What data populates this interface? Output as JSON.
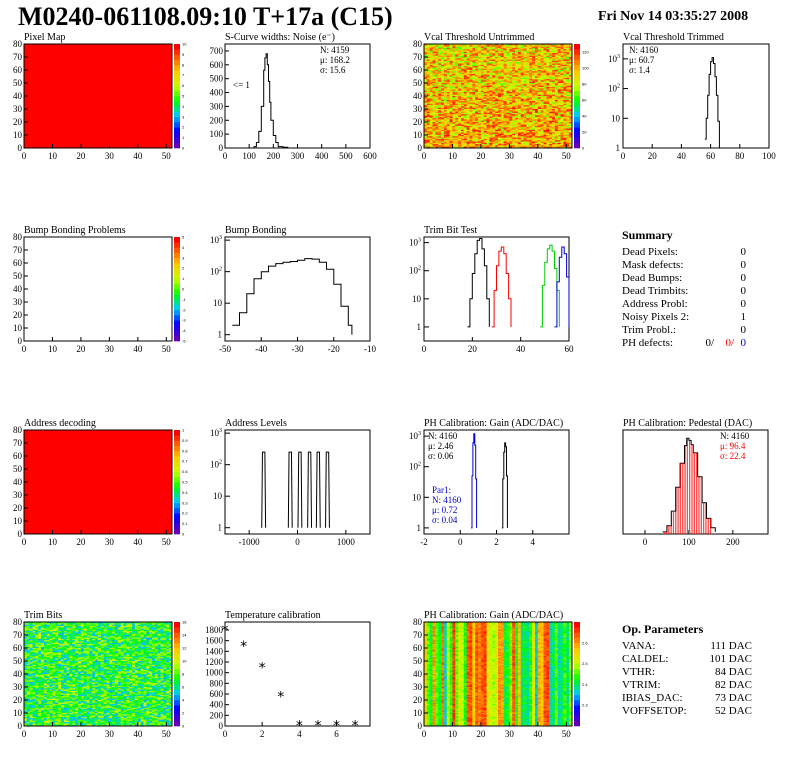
{
  "page": {
    "title": "M0240-061108.09:10 T+17a (C15)",
    "date": "Fri Nov 14 03:35:27 2008"
  },
  "colors": {
    "red": "#ff0000",
    "blue": "#0000cc",
    "green": "#00cc00",
    "black": "#000000"
  },
  "summary": {
    "title": "Summary",
    "rows": [
      {
        "label": "Dead Pixels:",
        "value": "0"
      },
      {
        "label": "Mask defects:",
        "value": "0"
      },
      {
        "label": "Dead Bumps:",
        "value": "0"
      },
      {
        "label": "Dead Trimbits:",
        "value": "0"
      },
      {
        "label": "Address Probl:",
        "value": "0"
      },
      {
        "label": "Noisy Pixels 2:",
        "value": "1"
      },
      {
        "label": "Trim Probl.:",
        "value": "0"
      }
    ],
    "ph_defects": {
      "label": "PH defects:",
      "v1": "0/",
      "v2": "0/",
      "v3": "0"
    }
  },
  "op_params": {
    "title": "Op. Parameters",
    "rows": [
      {
        "label": "VANA:",
        "value": "111 DAC"
      },
      {
        "label": "CALDEL:",
        "value": "101 DAC"
      },
      {
        "label": "VTHR:",
        "value": "84 DAC"
      },
      {
        "label": "VTRIM:",
        "value": "82 DAC"
      },
      {
        "label": "IBIAS_DAC:",
        "value": "73 DAC"
      },
      {
        "label": "VOFFSETOP:",
        "value": "52 DAC"
      }
    ]
  },
  "chart_data": [
    {
      "id": "pixel-map",
      "type": "heatmap",
      "title": "Pixel Map",
      "pattern": "uniform-red",
      "xlim": [
        0,
        52
      ],
      "ylim": [
        0,
        80
      ],
      "xticks": [
        0,
        10,
        20,
        30,
        40,
        50
      ],
      "yticks": [
        0,
        10,
        20,
        30,
        40,
        50,
        60,
        70,
        80
      ],
      "palette": {
        "min": 0,
        "max": 10,
        "ticks": [
          0,
          1,
          2,
          3,
          4,
          5,
          6,
          7,
          8,
          9,
          10
        ]
      }
    },
    {
      "id": "scurve-noise",
      "type": "line",
      "title": "S-Curve widths: Noise (e⁻)",
      "xlim": [
        0,
        600
      ],
      "ylim": [
        0,
        750
      ],
      "xticks": [
        0,
        100,
        200,
        300,
        400,
        500,
        600
      ],
      "yticks": [
        0,
        100,
        200,
        300,
        400,
        500,
        600,
        700
      ],
      "stats": [
        "N: 4159",
        "μ: 168.2",
        "σ: 15.6"
      ],
      "annotation": "<= 1",
      "series": [
        {
          "color": "#000",
          "x": [
            110,
            120,
            130,
            140,
            150,
            160,
            165,
            170,
            175,
            180,
            185,
            190,
            200,
            210,
            220,
            240,
            260
          ],
          "y": [
            0,
            10,
            40,
            120,
            300,
            560,
            650,
            680,
            600,
            480,
            330,
            200,
            90,
            40,
            10,
            5,
            0
          ]
        }
      ]
    },
    {
      "id": "vcal-untrimmed",
      "type": "heatmap",
      "title": "Vcal Threshold Untrimmed",
      "pattern": "noise-hot",
      "xlim": [
        0,
        52
      ],
      "ylim": [
        0,
        80
      ],
      "xticks": [
        0,
        10,
        20,
        30,
        40,
        50
      ],
      "yticks": [
        0,
        10,
        20,
        30,
        40,
        50,
        60,
        70,
        80
      ],
      "palette": {
        "min": 0,
        "max": 130,
        "ticks": [
          0,
          20,
          40,
          60,
          80,
          100,
          120
        ]
      }
    },
    {
      "id": "vcal-trimmed",
      "type": "line",
      "title": "Vcal Threshold Trimmed",
      "xlim": [
        0,
        100
      ],
      "log": true,
      "ydec": [
        0,
        3.5
      ],
      "xticks": [
        0,
        20,
        40,
        60,
        80,
        100
      ],
      "stats": [
        "N: 4160",
        "μ: 60.7",
        "σ: 1.4"
      ],
      "series": [
        {
          "color": "#000",
          "x": [
            56,
            57,
            58,
            59,
            60,
            61,
            62,
            63,
            64,
            65,
            66
          ],
          "y": [
            2,
            10,
            60,
            300,
            800,
            1100,
            700,
            250,
            60,
            8,
            1
          ]
        }
      ]
    },
    {
      "id": "bump-problems",
      "type": "heatmap",
      "title": "Bump Bonding Problems",
      "pattern": "empty",
      "xlim": [
        0,
        52
      ],
      "ylim": [
        0,
        80
      ],
      "xticks": [
        0,
        10,
        20,
        30,
        40,
        50
      ],
      "yticks": [
        0,
        10,
        20,
        30,
        40,
        50,
        60,
        70,
        80
      ],
      "palette": {
        "min": -5,
        "max": 5,
        "ticks": [
          -5,
          -4,
          -3,
          -2,
          -1,
          0,
          1,
          2,
          3,
          4,
          5
        ]
      }
    },
    {
      "id": "bump-bonding",
      "type": "line",
      "title": "Bump Bonding",
      "xlim": [
        -50,
        -10
      ],
      "log": true,
      "ydec": [
        -0.2,
        3.1
      ],
      "xticks": [
        -50,
        -40,
        -30,
        -20,
        -10
      ],
      "series": [
        {
          "color": "#000",
          "x": [
            -48,
            -46,
            -44,
            -42,
            -40,
            -38,
            -36,
            -34,
            -32,
            -30,
            -28,
            -26,
            -24,
            -22,
            -20,
            -18,
            -16,
            -15
          ],
          "y": [
            2,
            5,
            20,
            60,
            100,
            150,
            180,
            200,
            210,
            230,
            260,
            250,
            200,
            120,
            40,
            8,
            2,
            1
          ]
        }
      ]
    },
    {
      "id": "trim-bit-test",
      "type": "line",
      "title": "Trim Bit Test",
      "xlim": [
        0,
        60
      ],
      "log": true,
      "ydec": [
        -0.5,
        3.2
      ],
      "xticks": [
        0,
        20,
        40,
        60
      ],
      "series": [
        {
          "color": "#000",
          "x": [
            18,
            19,
            20,
            21,
            22,
            23,
            24,
            25,
            26,
            27
          ],
          "y": [
            1,
            10,
            80,
            400,
            1200,
            1400,
            600,
            150,
            10,
            1
          ]
        },
        {
          "color": "#ff0000",
          "x": [
            28,
            29,
            30,
            31,
            32,
            33,
            34,
            35,
            36
          ],
          "y": [
            1,
            20,
            150,
            500,
            700,
            400,
            80,
            10,
            1
          ]
        },
        {
          "color": "#00cc00",
          "x": [
            48,
            49,
            50,
            51,
            52,
            53,
            54,
            55,
            56
          ],
          "y": [
            1,
            30,
            200,
            600,
            800,
            500,
            120,
            20,
            1
          ]
        },
        {
          "color": "#0000cc",
          "x": [
            54,
            55,
            56,
            57,
            58,
            59,
            60
          ],
          "y": [
            1,
            40,
            300,
            700,
            400,
            60,
            1
          ]
        }
      ]
    },
    {
      "id": "address-decoding",
      "type": "heatmap",
      "title": "Address decoding",
      "pattern": "uniform-red",
      "xlim": [
        0,
        52
      ],
      "ylim": [
        0,
        80
      ],
      "xticks": [
        0,
        10,
        20,
        30,
        40,
        50
      ],
      "yticks": [
        0,
        10,
        20,
        30,
        40,
        50,
        60,
        70,
        80
      ],
      "palette": {
        "min": 0,
        "max": 1,
        "ticks": [
          0,
          0.1,
          0.2,
          0.3,
          0.4,
          0.5,
          0.6,
          0.7,
          0.8,
          0.9,
          1
        ]
      }
    },
    {
      "id": "address-levels",
      "type": "line",
      "title": "Address Levels",
      "xlim": [
        -1500,
        1500
      ],
      "log": true,
      "ydec": [
        -0.2,
        3.1
      ],
      "xticks": [
        -1000,
        0,
        1000
      ],
      "peaks": [
        -700,
        -150,
        50,
        250,
        430,
        620
      ],
      "series": [
        {
          "color": "#000",
          "x": [],
          "y": []
        }
      ]
    },
    {
      "id": "ph-gain",
      "type": "line",
      "title": "PH Calibration: Gain (ADC/DAC)",
      "xlim": [
        -2,
        6
      ],
      "log": true,
      "ydec": [
        -0.2,
        3.2
      ],
      "xticks": [
        -2,
        0,
        2,
        4
      ],
      "stats": [
        "N: 4160",
        "μ: 2.46",
        "σ: 0.06"
      ],
      "stats2": [
        "Par1:",
        "N: 4160",
        "μ: 0.72",
        "σ: 0.04"
      ],
      "series": [
        {
          "color": "#0000cc",
          "x": [
            0.6,
            0.65,
            0.7,
            0.75,
            0.8,
            0.85,
            0.9
          ],
          "y": [
            1,
            50,
            600,
            1200,
            500,
            40,
            1
          ]
        },
        {
          "color": "#000",
          "x": [
            2.3,
            2.35,
            2.4,
            2.45,
            2.5,
            2.55,
            2.6
          ],
          "y": [
            1,
            40,
            300,
            600,
            450,
            50,
            1
          ]
        }
      ]
    },
    {
      "id": "ph-pedestal",
      "type": "line",
      "title": "PH Calibration: Pedestal (DAC)",
      "xlim": [
        -50,
        280
      ],
      "ylim": [
        0,
        100
      ],
      "xticks": [
        0,
        100,
        200
      ],
      "stats": [
        "N: 4160",
        "μ: 96.4",
        "σ: 22.4"
      ],
      "series": [
        {
          "color": "#000",
          "x": [
            40,
            50,
            60,
            70,
            80,
            90,
            95,
            100,
            105,
            110,
            120,
            130,
            140,
            150,
            160
          ],
          "y": [
            2,
            8,
            22,
            45,
            68,
            85,
            92,
            90,
            86,
            78,
            55,
            30,
            15,
            6,
            2
          ]
        }
      ]
    },
    {
      "id": "trim-bits",
      "type": "heatmap",
      "title": "Trim Bits",
      "pattern": "noise-green",
      "xlim": [
        0,
        52
      ],
      "ylim": [
        0,
        80
      ],
      "xticks": [
        0,
        10,
        20,
        30,
        40,
        50
      ],
      "yticks": [
        0,
        10,
        20,
        30,
        40,
        50,
        60,
        70,
        80
      ],
      "palette": {
        "min": 0,
        "max": 16,
        "ticks": [
          0,
          2,
          4,
          6,
          8,
          10,
          12,
          14,
          16
        ]
      }
    },
    {
      "id": "temperature-calibration",
      "type": "scatter",
      "title": "Temperature calibration",
      "xlim": [
        0,
        7.8
      ],
      "ylim": [
        0,
        1950
      ],
      "xticks": [
        0,
        2,
        4,
        6
      ],
      "yticks": [
        0,
        200,
        400,
        600,
        800,
        1000,
        1200,
        1400,
        1600,
        1800
      ],
      "series": [
        {
          "color": "#000",
          "x": [
            0,
            1,
            2,
            3,
            4,
            5,
            6,
            7
          ],
          "y": [
            1800,
            1500,
            1100,
            550,
            10,
            10,
            10,
            5
          ]
        }
      ]
    },
    {
      "id": "ph-gain-map",
      "type": "heatmap",
      "title": "PH Calibration: Gain (ADC/DAC)",
      "pattern": "column-stripes",
      "xlim": [
        0,
        52
      ],
      "ylim": [
        0,
        80
      ],
      "xticks": [
        0,
        10,
        20,
        30,
        40,
        50
      ],
      "yticks": [
        0,
        10,
        20,
        30,
        40,
        50,
        60,
        70,
        80
      ],
      "palette": {
        "min": 2.2,
        "max": 2.7,
        "ticks": [
          2.3,
          2.4,
          2.5,
          2.6
        ]
      }
    }
  ]
}
